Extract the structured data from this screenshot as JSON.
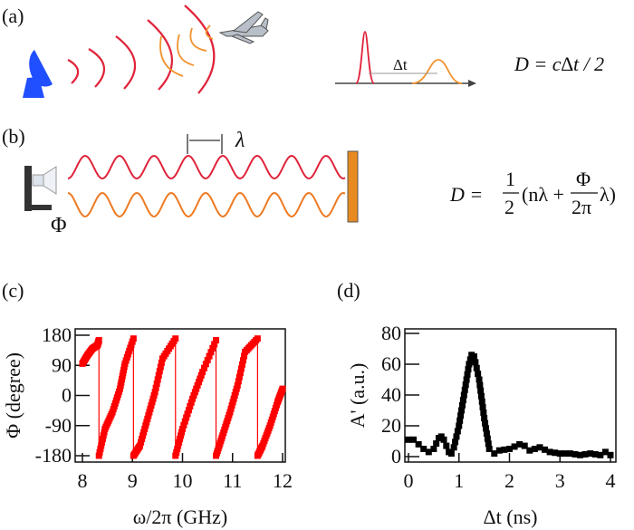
{
  "panel_a": {
    "label": "(a)",
    "delta_t": "Δt",
    "formula": "D = c∆t / 2",
    "colors": {
      "emitted": "#e0233a",
      "reflected": "#f0922e",
      "radar": "#1f4fff"
    },
    "icons": [
      "radar-dish-icon",
      "airplane-icon"
    ]
  },
  "panel_b": {
    "label": "(b)",
    "lambda": "λ",
    "phi": "Φ",
    "formula": {
      "lhs": "D =",
      "half_num": "1",
      "half_den": "2",
      "open": "(nλ +",
      "phi_num": "Φ",
      "phi_den": "2π",
      "close": "λ)"
    },
    "colors": {
      "emitted": "#e0233a",
      "reflected": "#ee7a22",
      "reflector": "#e88a20"
    }
  },
  "panel_c": {
    "label": "(c)"
  },
  "panel_d": {
    "label": "(d)"
  },
  "chart_data": [
    {
      "type": "line",
      "panel": "(c)",
      "xlabel": "ω/2π (GHz)",
      "ylabel": "Φ (degree)",
      "xlim": [
        8,
        12
      ],
      "ylim": [
        -180,
        180
      ],
      "xticks": [
        "8",
        "9",
        "10",
        "11",
        "12"
      ],
      "yticks": [
        "180",
        "90",
        "0",
        "-90",
        "-180"
      ],
      "color": "#ff0000",
      "marker": "square",
      "segments": [
        {
          "x": [
            8.0,
            8.1,
            8.2,
            8.3,
            8.33
          ],
          "y": [
            95,
            120,
            140,
            150,
            165
          ]
        },
        {
          "x": [
            8.33,
            8.45,
            8.6,
            8.75,
            8.85,
            9.02
          ],
          "y": [
            -180,
            -100,
            -50,
            20,
            95,
            170
          ]
        },
        {
          "x": [
            9.02,
            9.15,
            9.3,
            9.45,
            9.6,
            9.86
          ],
          "y": [
            -180,
            -150,
            -70,
            10,
            110,
            170
          ]
        },
        {
          "x": [
            9.86,
            10.0,
            10.2,
            10.4,
            10.67
          ],
          "y": [
            -180,
            -100,
            -10,
            70,
            165
          ]
        },
        {
          "x": [
            10.67,
            10.8,
            10.95,
            11.1,
            11.25,
            11.5
          ],
          "y": [
            -180,
            -120,
            -50,
            30,
            130,
            170
          ]
        },
        {
          "x": [
            11.5,
            11.6,
            11.75,
            11.9,
            12.0
          ],
          "y": [
            -180,
            -150,
            -90,
            -20,
            20
          ]
        }
      ]
    },
    {
      "type": "scatter",
      "panel": "(d)",
      "xlabel": "Δt (ns)",
      "ylabel": "A' (a.u.)",
      "xlim": [
        0,
        4
      ],
      "ylim": [
        0,
        80
      ],
      "xticks": [
        "0",
        "1",
        "2",
        "3",
        "4"
      ],
      "yticks": [
        "80",
        "60",
        "40",
        "20",
        "0"
      ],
      "color": "#000000",
      "marker": "square",
      "x": [
        0,
        0.1,
        0.2,
        0.3,
        0.4,
        0.5,
        0.6,
        0.65,
        0.7,
        0.8,
        0.85,
        0.9,
        1.0,
        1.1,
        1.2,
        1.25,
        1.3,
        1.4,
        1.5,
        1.6,
        1.7,
        1.8,
        2.0,
        2.2,
        2.3,
        2.4,
        2.6,
        2.8,
        3.0,
        3.2,
        3.4,
        3.6,
        3.8,
        3.9,
        4.0
      ],
      "y": [
        11,
        11,
        8,
        5,
        3,
        5,
        12,
        13,
        11,
        3,
        2,
        6,
        20,
        40,
        60,
        66,
        65,
        50,
        25,
        5,
        2,
        4,
        5,
        8,
        7,
        4,
        6,
        3,
        2,
        2,
        1,
        2,
        1,
        3,
        1
      ]
    }
  ]
}
